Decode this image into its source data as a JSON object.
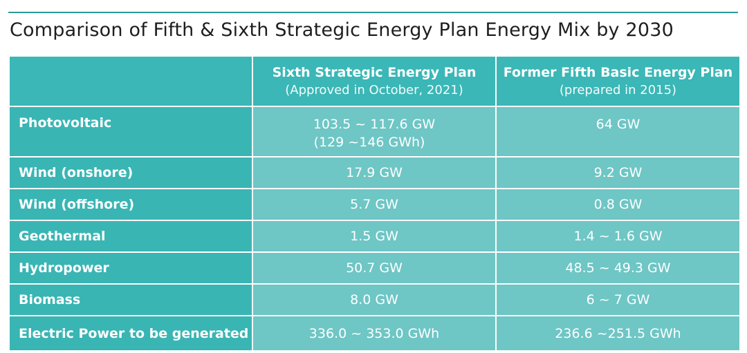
{
  "title": "Comparison of Fifth & Sixth Strategic Energy Plan Energy Mix by 2030",
  "chart_data": {
    "type": "table",
    "columns": [
      {
        "title": "Sixth Strategic Energy Plan",
        "subtitle": "(Approved in October, 2021)"
      },
      {
        "title": "Former Fifth Basic Energy Plan",
        "subtitle": "(prepared in 2015)"
      }
    ],
    "rows": [
      {
        "label": "Photovoltaic",
        "sixth": [
          "103.5 ~ 117.6 GW",
          "(129 ~146 GWh)"
        ],
        "fifth": "64 GW"
      },
      {
        "label": "Wind (onshore)",
        "sixth": [
          "17.9 GW"
        ],
        "fifth": "9.2 GW"
      },
      {
        "label": "Wind (offshore)",
        "sixth": [
          "5.7 GW"
        ],
        "fifth": "0.8 GW"
      },
      {
        "label": "Geothermal",
        "sixth": [
          "1.5 GW"
        ],
        "fifth": "1.4 ~ 1.6 GW"
      },
      {
        "label": "Hydropower",
        "sixth": [
          "50.7 GW"
        ],
        "fifth": "48.5 ~ 49.3 GW"
      },
      {
        "label": "Biomass",
        "sixth": [
          "8.0 GW"
        ],
        "fifth": "6 ~ 7 GW"
      },
      {
        "label": "Electric Power to be generated",
        "sixth": [
          "336.0 ~ 353.0 GWh"
        ],
        "fifth": "236.6 ~251.5 GWh"
      }
    ]
  },
  "colors": {
    "header_bg": "#3ab7b6",
    "label_bg": "#39b5b4",
    "value_bg": "#6ec6c5",
    "rule": "#2a9a9a"
  }
}
